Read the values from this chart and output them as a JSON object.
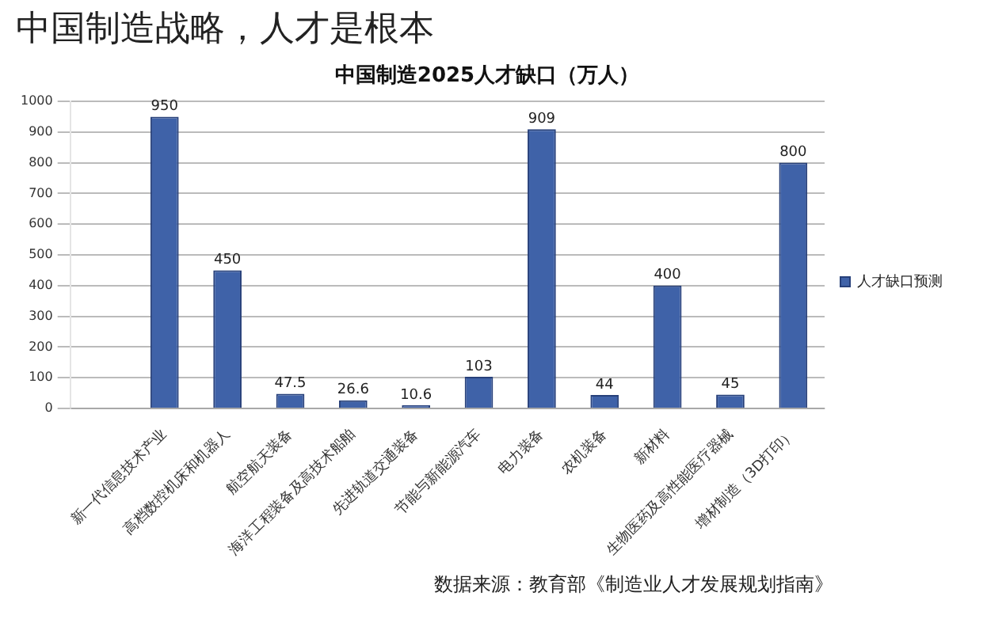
{
  "chart_data": {
    "type": "bar",
    "title": "中国制造战略，人才是根本",
    "subtitle": "中国制造2025人才缺口（万人）",
    "categories": [
      null,
      "新一代信息技术产业",
      "高档数控机床和机器人",
      "航空航天装备",
      "海洋工程装备及高技术船舶",
      "先进轨道交通装备",
      "节能与新能源汽车",
      "电力装备",
      "农机装备",
      "新材料",
      "生物医药及高性能医疗器械",
      "增材制造（3D打印）"
    ],
    "series": [
      {
        "name": "人才缺口预测",
        "color": "#3f62a8",
        "values": [
          null,
          950,
          450,
          47.5,
          26.6,
          10.6,
          103,
          909,
          44,
          400,
          45,
          800
        ]
      }
    ],
    "ylim": [
      0,
      1000
    ],
    "yticks": [
      0,
      100,
      200,
      300,
      400,
      500,
      600,
      700,
      800,
      900,
      1000
    ],
    "grid": "y",
    "legend": "right",
    "data_labels": true,
    "annotations": [
      "数据来源：教育部《制造业人才发展规划指南》"
    ]
  }
}
